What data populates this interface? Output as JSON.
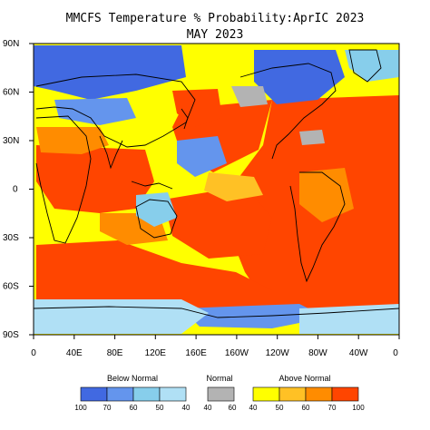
{
  "title": "MMCFS Temperature % Probability:AprIC 2023",
  "subtitle": "MAY 2023",
  "lat_labels": [
    "90N",
    "60N",
    "30N",
    "0",
    "30S",
    "60S",
    "90S"
  ],
  "lon_labels": [
    "0",
    "40E",
    "80E",
    "120E",
    "160E",
    "160W",
    "120W",
    "80W",
    "40W",
    "0"
  ],
  "legend": {
    "below_label": "Below Normal",
    "normal_label": "Normal",
    "above_label": "Above Normal",
    "below_ticks": [
      "100",
      "70",
      "60",
      "50",
      "40"
    ],
    "normal_ticks": [
      "40",
      "60"
    ],
    "above_ticks": [
      "40",
      "50",
      "60",
      "70",
      "100"
    ],
    "colors": {
      "below": [
        "#4169e1",
        "#6495ed",
        "#87ceeb",
        "#b0e0f5"
      ],
      "normal": "#b3b3b3",
      "above": [
        "#ffff00",
        "#ffc125",
        "#ff8c00",
        "#ff4500"
      ]
    }
  }
}
